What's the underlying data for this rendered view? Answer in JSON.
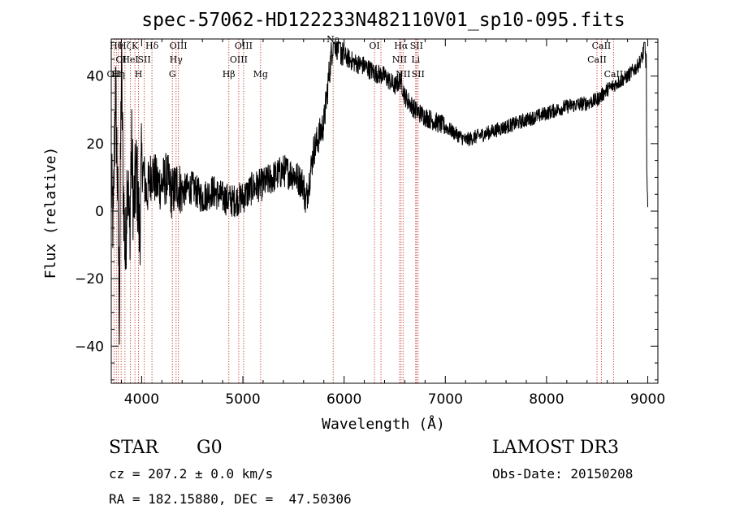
{
  "chart_data": {
    "type": "line",
    "title": "spec-57062-HD122233N482110V01_sp10-095.fits",
    "xlabel": "Wavelength (Å)",
    "ylabel": "Flux (relative)",
    "xlim": [
      3700,
      9100
    ],
    "ylim": [
      -51,
      51
    ],
    "xticks": [
      4000,
      5000,
      6000,
      7000,
      8000,
      9000
    ],
    "xtick_labels": [
      "4000",
      "5000",
      "6000",
      "7000",
      "8000",
      "9000"
    ],
    "yticks": [
      -40,
      -20,
      0,
      20,
      40
    ],
    "ytick_labels": [
      "−40",
      "−20",
      "0",
      "20",
      "40"
    ],
    "series": [
      {
        "name": "spectrum",
        "x": [
          3700,
          3720,
          3740,
          3760,
          3780,
          3800,
          3820,
          3840,
          3860,
          3880,
          3900,
          3920,
          3950,
          3980,
          4000,
          4050,
          4100,
          4150,
          4200,
          4250,
          4300,
          4350,
          4400,
          4500,
          4600,
          4700,
          4800,
          4900,
          5000,
          5100,
          5200,
          5300,
          5400,
          5500,
          5600,
          5620,
          5700,
          5800,
          5850,
          5880,
          5900,
          5920,
          5950,
          6000,
          6100,
          6200,
          6300,
          6400,
          6500,
          6560,
          6600,
          6700,
          6800,
          7000,
          7100,
          7200,
          7300,
          7500,
          7800,
          8000,
          8200,
          8400,
          8500,
          8600,
          8700,
          8800,
          8900,
          8950,
          8970,
          8980,
          8985,
          8990,
          8995,
          9000
        ],
        "y": [
          8,
          -5,
          38,
          12,
          -30,
          44,
          5,
          -15,
          15,
          -8,
          20,
          0,
          12,
          -8,
          15,
          5,
          12,
          8,
          8,
          10,
          5,
          8,
          6,
          7,
          4,
          6,
          4,
          3,
          4,
          7,
          8,
          10,
          12,
          11,
          8,
          2,
          18,
          26,
          40,
          48,
          52,
          50,
          49,
          46,
          44,
          43,
          41,
          40,
          37,
          39,
          34,
          30,
          28,
          25,
          23,
          21,
          22,
          24,
          27,
          29,
          31,
          32,
          33,
          36,
          38,
          40,
          43,
          46,
          50,
          45,
          44,
          12,
          5,
          0
        ]
      }
    ],
    "lines": [
      {
        "x": 3727,
        "label": "OII",
        "row": 3
      },
      {
        "x": 3750,
        "label": "Hθ",
        "row": 1
      },
      {
        "x": 3770,
        "label": "Hη",
        "row": 3
      },
      {
        "x": 3798,
        "label": "OI",
        "row": 2
      },
      {
        "x": 3835,
        "label": "Hζ",
        "row": 1
      },
      {
        "x": 3889,
        "label": "HeI",
        "row": 2
      },
      {
        "x": 3934,
        "label": "K",
        "row": 1
      },
      {
        "x": 3969,
        "label": "H",
        "row": 3
      },
      {
        "x": 4026,
        "label": "SII",
        "row": 2
      },
      {
        "x": 4102,
        "label": "Hδ",
        "row": 1
      },
      {
        "x": 4304,
        "label": "G",
        "row": 3
      },
      {
        "x": 4340,
        "label": "Hγ",
        "row": 2
      },
      {
        "x": 4363,
        "label": "OIII",
        "row": 1
      },
      {
        "x": 4861,
        "label": "Hβ",
        "row": 3
      },
      {
        "x": 4959,
        "label": "OIII",
        "row": 2
      },
      {
        "x": 5007,
        "label": "OIII",
        "row": 1
      },
      {
        "x": 5175,
        "label": "Mg",
        "row": 3
      },
      {
        "x": 5892,
        "label": "Na",
        "row": 0
      },
      {
        "x": 6300,
        "label": "OI",
        "row": 1
      },
      {
        "x": 6364,
        "label": "OI",
        "row": 3
      },
      {
        "x": 6548,
        "label": "NII",
        "row": 2
      },
      {
        "x": 6563,
        "label": "Hα",
        "row": 1
      },
      {
        "x": 6583,
        "label": "NII",
        "row": 3
      },
      {
        "x": 6707,
        "label": "Li",
        "row": 2
      },
      {
        "x": 6716,
        "label": "SII",
        "row": 1
      },
      {
        "x": 6731,
        "label": "SII",
        "row": 3
      },
      {
        "x": 8498,
        "label": "CaII",
        "row": 2
      },
      {
        "x": 8542,
        "label": "CaII",
        "row": 1
      },
      {
        "x": 8662,
        "label": "CaII",
        "row": 3
      }
    ]
  },
  "info": {
    "object_class": "STAR",
    "subclass": "G0",
    "survey": "LAMOST DR3",
    "cz_text": "cz = 207.2 ± 0.0 km/s",
    "obs_date": "Obs-Date: 20150208",
    "coords": "RA = 182.15880, DEC =  47.50306"
  }
}
